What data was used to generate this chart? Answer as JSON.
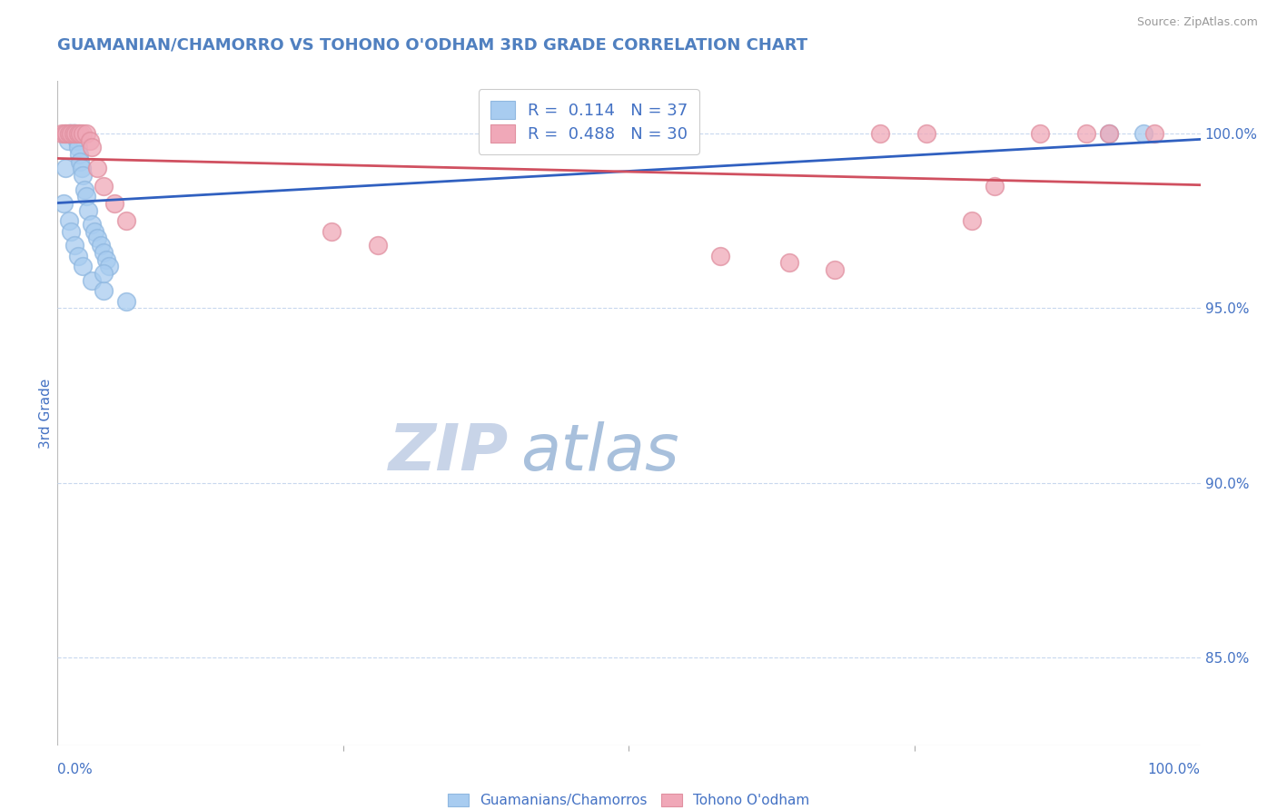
{
  "title": "GUAMANIAN/CHAMORRO VS TOHONO O'ODHAM 3RD GRADE CORRELATION CHART",
  "source": "Source: ZipAtlas.com",
  "ylabel": "3rd Grade",
  "yaxis_labels": [
    "100.0%",
    "95.0%",
    "90.0%",
    "85.0%"
  ],
  "yaxis_values": [
    1.0,
    0.95,
    0.9,
    0.85
  ],
  "xlim": [
    0.0,
    1.0
  ],
  "ylim": [
    0.825,
    1.015
  ],
  "blue_R": 0.114,
  "blue_N": 37,
  "pink_R": 0.488,
  "pink_N": 30,
  "blue_label": "Guamanians/Chamorros",
  "pink_label": "Tohono O'odham",
  "blue_color": "#A8CCF0",
  "pink_color": "#F0A8B8",
  "blue_edge_color": "#90B8E0",
  "pink_edge_color": "#E090A0",
  "blue_line_color": "#3060C0",
  "pink_line_color": "#D05060",
  "title_color": "#5080C0",
  "axis_label_color": "#4472C4",
  "grid_color": "#C8D8EE",
  "background_color": "#FFFFFF",
  "watermark_zip_color": "#C8D8EE",
  "watermark_atlas_color": "#A8C8E8",
  "blue_x": [
    0.005,
    0.007,
    0.009,
    0.01,
    0.011,
    0.012,
    0.013,
    0.014,
    0.015,
    0.016,
    0.017,
    0.018,
    0.019,
    0.02,
    0.021,
    0.022,
    0.024,
    0.025,
    0.027,
    0.03,
    0.032,
    0.035,
    0.038,
    0.04,
    0.043,
    0.045,
    0.01,
    0.012,
    0.015,
    0.018,
    0.022,
    0.03,
    0.04,
    0.06,
    0.92,
    0.95,
    0.04
  ],
  "blue_y": [
    0.98,
    0.99,
    0.998,
    1.0,
    1.0,
    1.0,
    1.0,
    1.0,
    1.0,
    1.0,
    0.998,
    0.996,
    0.994,
    0.992,
    0.99,
    0.988,
    0.984,
    0.982,
    0.978,
    0.974,
    0.972,
    0.97,
    0.968,
    0.966,
    0.964,
    0.962,
    0.975,
    0.972,
    0.968,
    0.965,
    0.962,
    0.958,
    0.955,
    0.952,
    1.0,
    1.0,
    0.96
  ],
  "pink_x": [
    0.004,
    0.006,
    0.008,
    0.01,
    0.012,
    0.014,
    0.016,
    0.018,
    0.02,
    0.022,
    0.025,
    0.028,
    0.03,
    0.035,
    0.04,
    0.05,
    0.06,
    0.24,
    0.28,
    0.58,
    0.64,
    0.68,
    0.72,
    0.76,
    0.8,
    0.82,
    0.86,
    0.9,
    0.92,
    0.96
  ],
  "pink_y": [
    1.0,
    1.0,
    1.0,
    1.0,
    1.0,
    1.0,
    1.0,
    1.0,
    1.0,
    1.0,
    1.0,
    0.998,
    0.996,
    0.99,
    0.985,
    0.98,
    0.975,
    0.972,
    0.968,
    0.965,
    0.963,
    0.961,
    1.0,
    1.0,
    0.975,
    0.985,
    1.0,
    1.0,
    1.0,
    1.0
  ]
}
